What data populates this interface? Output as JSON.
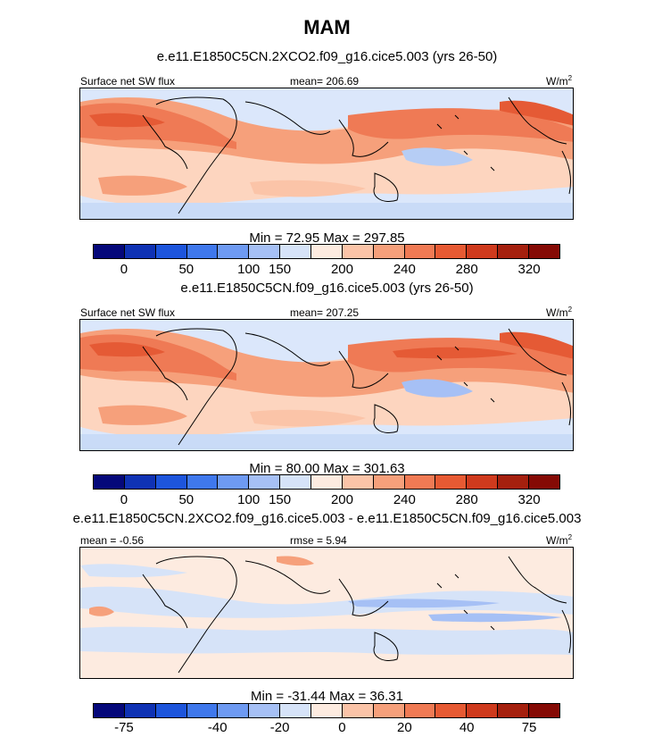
{
  "chart_data": {
    "type": "heatmap",
    "title": "MAM",
    "panels": [
      {
        "title": "e.e11.E1850C5CN.2XCO2.f09_g16.cice5.003 (yrs 26-50)",
        "left_label": "Surface net SW flux",
        "center_label": "mean= 206.69",
        "units_label": "W/m",
        "units_exp": "2",
        "mean": 206.69,
        "min": 72.95,
        "max": 297.85,
        "minmax_text": "Min =  72.95 Max = 297.85",
        "colorbar_ticks": [
          "0",
          "50",
          "100",
          "150",
          "200",
          "240",
          "280",
          "320"
        ]
      },
      {
        "title": "e.e11.E1850C5CN.f09_g16.cice5.003 (yrs 26-50)",
        "left_label": "Surface net SW flux",
        "center_label": "mean= 207.25",
        "units_label": "W/m",
        "units_exp": "2",
        "mean": 207.25,
        "min": 80.0,
        "max": 301.63,
        "minmax_text": "Min =  80.00 Max = 301.63",
        "colorbar_ticks": [
          "0",
          "50",
          "100",
          "150",
          "200",
          "240",
          "280",
          "320"
        ]
      },
      {
        "title": "e.e11.E1850C5CN.2XCO2.f09_g16.cice5.003 - e.e11.E1850C5CN.f09_g16.cice5.003",
        "left_label": "mean =  -0.56",
        "center_label": "rmse =  5.94",
        "units_label": "W/m",
        "units_exp": "2",
        "mean": -0.56,
        "rmse": 5.94,
        "min": -31.44,
        "max": 36.31,
        "minmax_text": "Min = -31.44 Max =  36.31",
        "colorbar_ticks": [
          "-75",
          "-40",
          "-20",
          "0",
          "20",
          "40",
          "75"
        ]
      }
    ],
    "colorbar_colors": [
      "#05087a",
      "#0f32b4",
      "#1d55dc",
      "#3f78ec",
      "#6e9af2",
      "#a6c0f5",
      "#d6e3f8",
      "#fdebe0",
      "#fbc4a8",
      "#f6a07b",
      "#f07a54",
      "#e75a33",
      "#cf3a1d",
      "#a5200e",
      "#850a05"
    ]
  }
}
